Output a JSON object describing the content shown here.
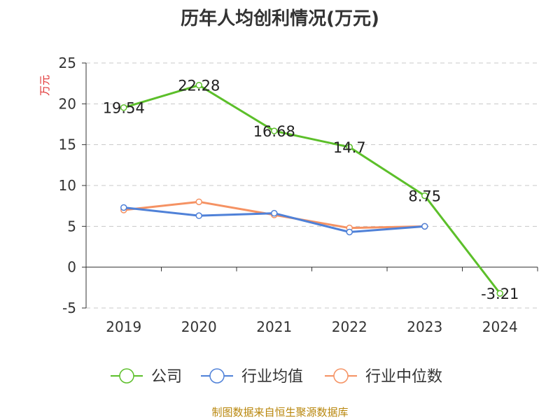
{
  "title": "历年人均创利情况(万元)",
  "source": "制图数据来自恒生聚源数据库",
  "chart_data": {
    "type": "line",
    "title": "历年人均创利情况(万元)",
    "xlabel": "",
    "ylabel": "万元",
    "categories": [
      "2019",
      "2020",
      "2021",
      "2022",
      "2023",
      "2024"
    ],
    "ylim": [
      -5,
      25
    ],
    "yticks": [
      -5,
      0,
      5,
      10,
      15,
      20,
      25
    ],
    "grid": true,
    "legend_position": "bottom",
    "series": [
      {
        "name": "公司",
        "color": "#5cbf2a",
        "values": [
          19.54,
          22.28,
          16.68,
          14.7,
          8.75,
          -3.21
        ],
        "labels": [
          "19.54",
          "22.28",
          "16.68",
          "14.7",
          "8.75",
          "-3.21"
        ]
      },
      {
        "name": "行业均值",
        "color": "#4f81d8",
        "values": [
          7.3,
          6.3,
          6.6,
          4.3,
          5.0,
          null
        ]
      },
      {
        "name": "行业中位数",
        "color": "#f59263",
        "values": [
          7.0,
          8.0,
          6.4,
          4.8,
          5.0,
          null
        ]
      }
    ]
  }
}
